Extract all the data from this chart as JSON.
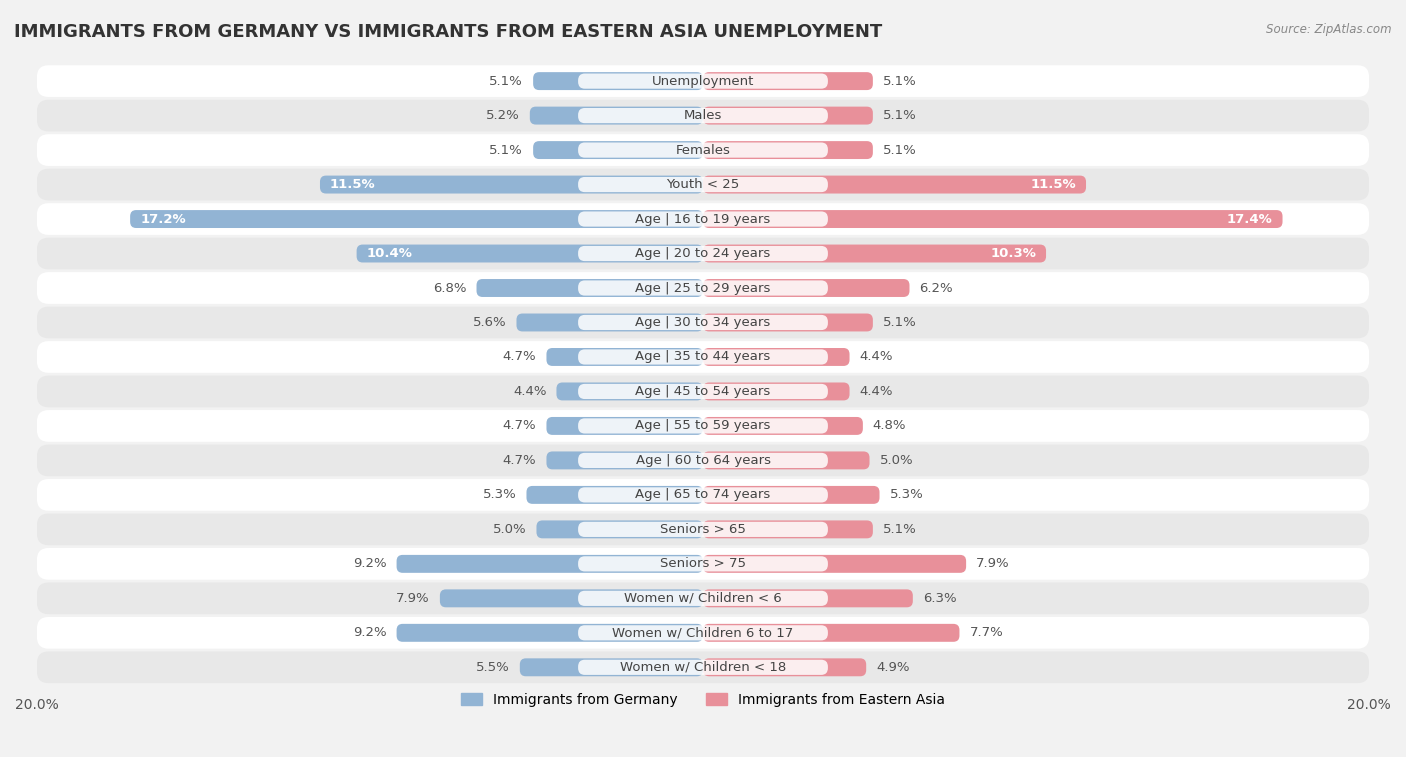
{
  "title": "IMMIGRANTS FROM GERMANY VS IMMIGRANTS FROM EASTERN ASIA UNEMPLOYMENT",
  "source": "Source: ZipAtlas.com",
  "categories": [
    "Unemployment",
    "Males",
    "Females",
    "Youth < 25",
    "Age | 16 to 19 years",
    "Age | 20 to 24 years",
    "Age | 25 to 29 years",
    "Age | 30 to 34 years",
    "Age | 35 to 44 years",
    "Age | 45 to 54 years",
    "Age | 55 to 59 years",
    "Age | 60 to 64 years",
    "Age | 65 to 74 years",
    "Seniors > 65",
    "Seniors > 75",
    "Women w/ Children < 6",
    "Women w/ Children 6 to 17",
    "Women w/ Children < 18"
  ],
  "germany_values": [
    5.1,
    5.2,
    5.1,
    11.5,
    17.2,
    10.4,
    6.8,
    5.6,
    4.7,
    4.4,
    4.7,
    4.7,
    5.3,
    5.0,
    9.2,
    7.9,
    9.2,
    5.5
  ],
  "eastern_asia_values": [
    5.1,
    5.1,
    5.1,
    11.5,
    17.4,
    10.3,
    6.2,
    5.1,
    4.4,
    4.4,
    4.8,
    5.0,
    5.3,
    5.1,
    7.9,
    6.3,
    7.7,
    4.9
  ],
  "germany_color": "#92b4d4",
  "eastern_asia_color": "#e8909a",
  "axis_max": 20.0,
  "bar_height": 0.52,
  "background_color": "#f2f2f2",
  "row_colors_even": "#ffffff",
  "row_colors_odd": "#e8e8e8",
  "label_fontsize": 9.5,
  "value_fontsize": 9.5,
  "title_fontsize": 13,
  "legend_germany": "Immigrants from Germany",
  "legend_eastern_asia": "Immigrants from Eastern Asia"
}
